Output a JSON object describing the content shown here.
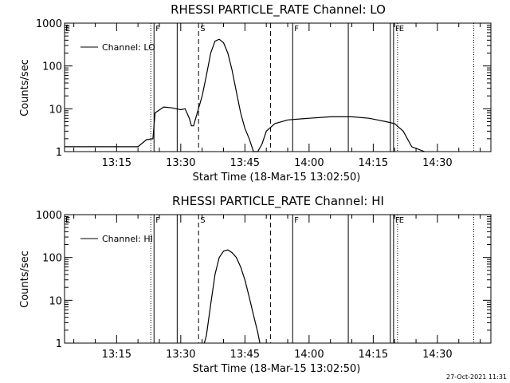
{
  "timestamp": "27-Oct-2021 11:31",
  "chart_data": [
    {
      "type": "line",
      "title": "RHESSI PARTICLE_RATE Channel: LO",
      "xlabel": "Start Time (18-Mar-15 13:02:50)",
      "ylabel": "Counts/sec",
      "yscale": "log",
      "ylim": [
        1,
        1000
      ],
      "xlim": [
        "13:02:50",
        "14:42:30"
      ],
      "yticks": [
        "1",
        "10",
        "100",
        "1000"
      ],
      "xticks": [
        "13:15",
        "13:30",
        "13:45",
        "14:00",
        "14:15",
        "14:30"
      ],
      "legend": "upper-left",
      "series": [
        {
          "name": "Channel: LO",
          "x": [
            "13:02:50",
            "13:10:00",
            "13:16:00",
            "13:20:00",
            "13:22:00",
            "13:23:30",
            "13:24:00",
            "13:26:00",
            "13:28:00",
            "13:30:00",
            "13:31:00",
            "13:32:00",
            "13:32:30",
            "13:33:00",
            "13:34:00",
            "13:35:00",
            "13:36:00",
            "13:37:00",
            "13:38:00",
            "13:39:00",
            "13:40:00",
            "13:41:00",
            "13:42:00",
            "13:43:00",
            "13:44:00",
            "13:45:00",
            "13:46:00",
            "13:47:00",
            "13:48:00",
            "13:49:00",
            "13:50:00",
            "13:52:00",
            "13:55:00",
            "14:00:00",
            "14:05:00",
            "14:10:00",
            "14:14:00",
            "14:16:00",
            "14:18:00",
            "14:20:00",
            "14:22:00",
            "14:24:00",
            "14:27:00"
          ],
          "y": [
            1.3,
            1.3,
            1.3,
            1.3,
            1.9,
            2.0,
            8.0,
            11.0,
            10.5,
            9.5,
            10.0,
            6.0,
            4.0,
            4.0,
            9.0,
            20,
            60,
            200,
            380,
            420,
            350,
            200,
            80,
            25,
            8,
            3.5,
            2.0,
            1.0,
            1.0,
            1.5,
            3.0,
            4.5,
            5.5,
            6.0,
            6.5,
            6.5,
            6.0,
            5.5,
            5.0,
            4.5,
            3.0,
            1.3,
            1.0
          ]
        }
      ],
      "markers": [
        {
          "time": "13:23:00",
          "style": "dotted",
          "label": ""
        },
        {
          "time": "13:23:45",
          "style": "solid",
          "label": "F"
        },
        {
          "time": "13:29:10",
          "style": "solid",
          "label": ""
        },
        {
          "time": "13:34:10",
          "style": "dashed",
          "label": "S"
        },
        {
          "time": "13:51:00",
          "style": "dashed",
          "label": ""
        },
        {
          "time": "13:56:10",
          "style": "solid",
          "label": "F"
        },
        {
          "time": "14:09:10",
          "style": "solid",
          "label": ""
        },
        {
          "time": "14:19:00",
          "style": "solid",
          "label": ""
        },
        {
          "time": "14:19:45",
          "style": "solid",
          "label": "F"
        },
        {
          "time": "14:20:40",
          "style": "dotted",
          "label": "E"
        },
        {
          "time": "14:38:30",
          "style": "dotted",
          "label": ""
        }
      ]
    },
    {
      "type": "line",
      "title": "RHESSI PARTICLE_RATE Channel: HI",
      "xlabel": "Start Time (18-Mar-15 13:02:50)",
      "ylabel": "Counts/sec",
      "yscale": "log",
      "ylim": [
        1,
        1000
      ],
      "xlim": [
        "13:02:50",
        "14:42:30"
      ],
      "yticks": [
        "1",
        "10",
        "100",
        "1000"
      ],
      "xticks": [
        "13:15",
        "13:30",
        "13:45",
        "14:00",
        "14:15",
        "14:30"
      ],
      "legend": "upper-left",
      "series": [
        {
          "name": "Channel: HI",
          "x": [
            "13:35:30",
            "13:36:00",
            "13:37:00",
            "13:38:00",
            "13:39:00",
            "13:40:00",
            "13:41:00",
            "13:42:00",
            "13:43:00",
            "13:44:00",
            "13:45:00",
            "13:46:00",
            "13:47:00",
            "13:48:00",
            "13:48:30"
          ],
          "y": [
            1.0,
            1.5,
            8.0,
            40,
            100,
            140,
            150,
            130,
            100,
            60,
            30,
            12,
            4.5,
            1.8,
            1.0
          ]
        }
      ],
      "markers": [
        {
          "time": "13:23:00",
          "style": "dotted",
          "label": ""
        },
        {
          "time": "13:23:45",
          "style": "solid",
          "label": "F"
        },
        {
          "time": "13:29:10",
          "style": "solid",
          "label": ""
        },
        {
          "time": "13:34:10",
          "style": "dashed",
          "label": "S"
        },
        {
          "time": "13:51:00",
          "style": "dashed",
          "label": ""
        },
        {
          "time": "13:56:10",
          "style": "solid",
          "label": "F"
        },
        {
          "time": "14:09:10",
          "style": "solid",
          "label": ""
        },
        {
          "time": "14:19:00",
          "style": "solid",
          "label": ""
        },
        {
          "time": "14:19:45",
          "style": "solid",
          "label": "F"
        },
        {
          "time": "14:20:40",
          "style": "dotted",
          "label": "E"
        },
        {
          "time": "14:38:30",
          "style": "dotted",
          "label": ""
        }
      ]
    }
  ]
}
